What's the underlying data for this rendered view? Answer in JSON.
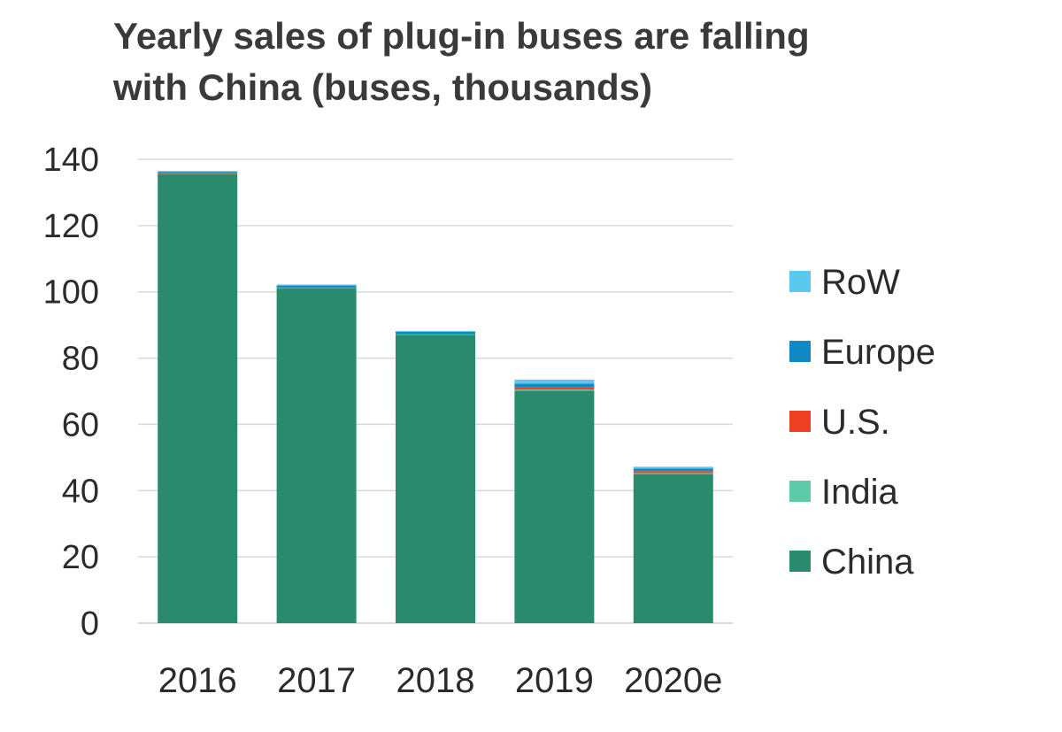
{
  "title_lines": [
    "Yearly sales of plug-in buses are falling",
    "with China (buses, thousands)"
  ],
  "colors": {
    "China": "#2a8a6e",
    "India": "#5ecba8",
    "U.S.": "#ee4123",
    "Europe": "#1189c4",
    "RoW": "#5bc8f0",
    "grid": "#d9d9d9",
    "text": "#2b2b2b"
  },
  "chart_data": {
    "type": "bar",
    "stacked": true,
    "title": "Yearly sales of plug-in buses are falling with China (buses, thousands)",
    "xlabel": "",
    "ylabel": "",
    "ylim": [
      0,
      140
    ],
    "yticks": [
      0,
      20,
      40,
      60,
      80,
      100,
      120,
      140
    ],
    "grid": true,
    "legend_position": "right",
    "legend_order": [
      "RoW",
      "Europe",
      "U.S.",
      "India",
      "China"
    ],
    "categories": [
      "2016",
      "2017",
      "2018",
      "2019",
      "2020e"
    ],
    "series": [
      {
        "name": "China",
        "values": [
          135.5,
          101.0,
          87.0,
          70.2,
          45.0
        ]
      },
      {
        "name": "India",
        "values": [
          0.1,
          0.1,
          0.1,
          0.3,
          0.3
        ]
      },
      {
        "name": "U.S.",
        "values": [
          0.1,
          0.2,
          0.2,
          0.8,
          0.6
        ]
      },
      {
        "name": "Europe",
        "values": [
          0.5,
          0.6,
          0.6,
          1.0,
          0.8
        ]
      },
      {
        "name": "RoW",
        "values": [
          0.3,
          0.3,
          0.3,
          1.2,
          0.5
        ]
      }
    ]
  }
}
